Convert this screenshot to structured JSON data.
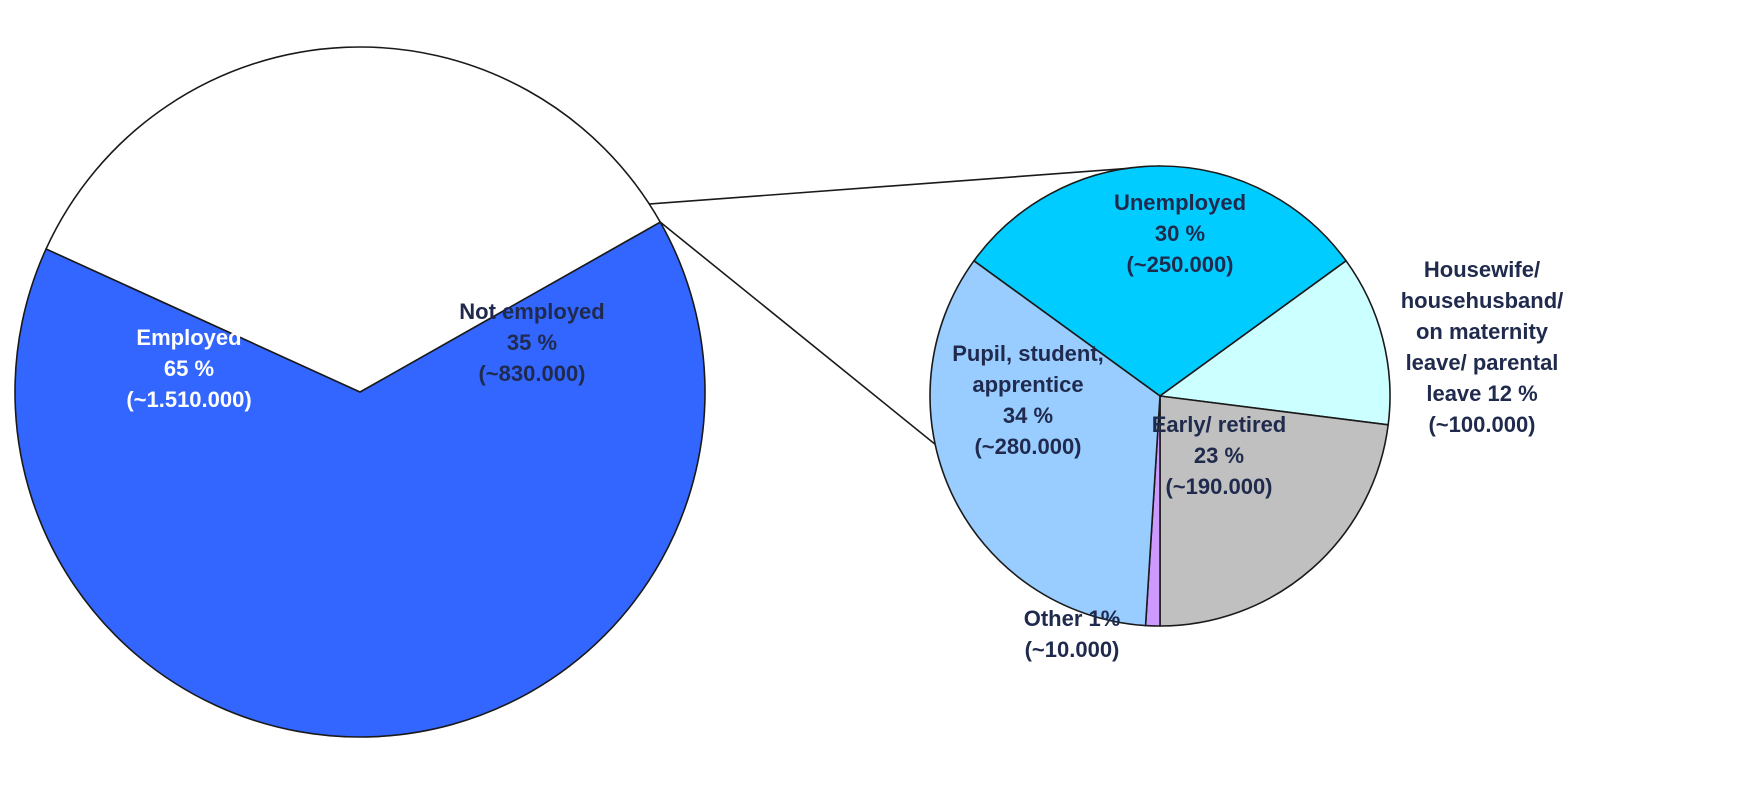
{
  "chart_data": [
    {
      "type": "pie",
      "slices": [
        {
          "label": "Employed",
          "percent_text": "65 %",
          "amount_text": "(~1.510.000)",
          "value": 65,
          "color": "#3366ff",
          "text_color": "#ffffff"
        },
        {
          "label": "Not employed",
          "percent_text": "35 %",
          "amount_text": "(~830.000)",
          "value": 35,
          "color": "#ffffff",
          "text_color": "#1f2a4d"
        }
      ]
    },
    {
      "type": "pie",
      "breakdown_of": "Not employed",
      "slices": [
        {
          "label": "Unemployed",
          "percent_text": "30 %",
          "amount_text": "(~250.000)",
          "value": 30,
          "color": "#00ccff",
          "text_color": "#1f2a4d"
        },
        {
          "label": "Housewife/ househusband/ on maternity leave/ parental leave 12 %",
          "amount_text": "(~100.000)",
          "value": 12,
          "color": "#ccffff",
          "text_color": "#1f2a4d"
        },
        {
          "label": "Early/ retired",
          "percent_text": "23 %",
          "amount_text": "(~190.000)",
          "value": 23,
          "color": "#c0c0c0",
          "text_color": "#1f2a4d"
        },
        {
          "label": "Other 1%",
          "amount_text": "(~10.000)",
          "value": 1,
          "color": "#cc99ff",
          "text_color": "#1f2a4d"
        },
        {
          "label": "Pupil, student, apprentice",
          "percent_text": "34 %",
          "amount_text": "(~280.000)",
          "value": 34,
          "color": "#99ccff",
          "text_color": "#1f2a4d"
        }
      ]
    }
  ]
}
